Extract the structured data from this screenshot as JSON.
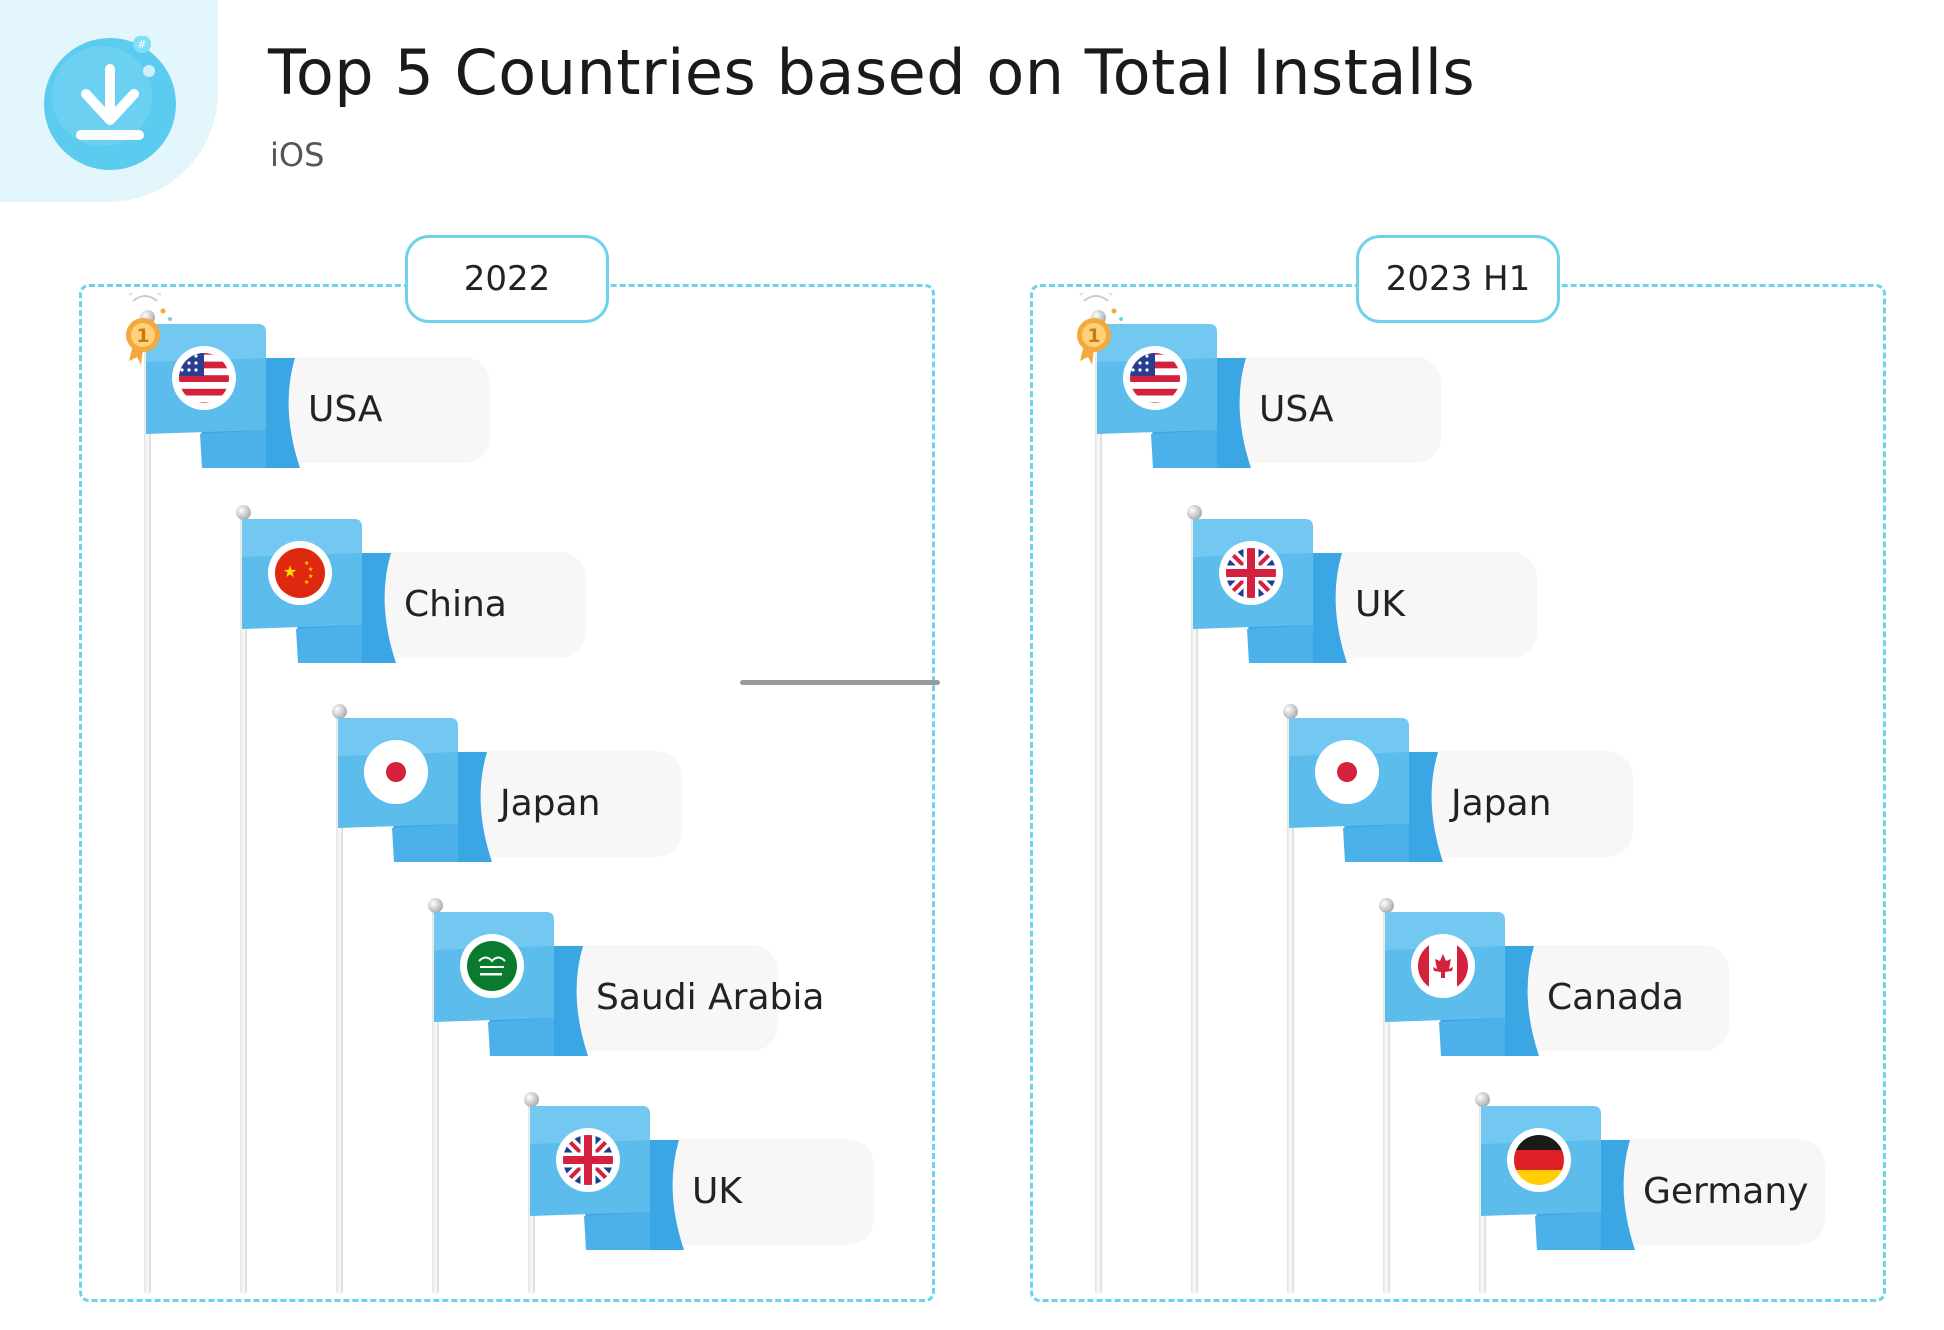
{
  "header": {
    "title": "Top 5 Countries based on Total Installs",
    "platform": "iOS",
    "icon": "download-icon"
  },
  "colors": {
    "accent": "#6fd2ea",
    "flag_blue": "#5cbcec",
    "flag_dark": "#3aa6e4",
    "medal": "#f3a93b"
  },
  "panels": [
    {
      "year": "2022",
      "countries": [
        {
          "rank": 1,
          "name": "USA",
          "flag": "usa-flag-icon"
        },
        {
          "rank": 2,
          "name": "China",
          "flag": "china-flag-icon"
        },
        {
          "rank": 3,
          "name": "Japan",
          "flag": "japan-flag-icon"
        },
        {
          "rank": 4,
          "name": "Saudi Arabia",
          "flag": "saudi-arabia-flag-icon"
        },
        {
          "rank": 5,
          "name": "UK",
          "flag": "uk-flag-icon"
        }
      ]
    },
    {
      "year": "2023 H1",
      "countries": [
        {
          "rank": 1,
          "name": "USA",
          "flag": "usa-flag-icon"
        },
        {
          "rank": 2,
          "name": "UK",
          "flag": "uk-flag-icon"
        },
        {
          "rank": 3,
          "name": "Japan",
          "flag": "japan-flag-icon"
        },
        {
          "rank": 4,
          "name": "Canada",
          "flag": "canada-flag-icon"
        },
        {
          "rank": 5,
          "name": "Germany",
          "flag": "germany-flag-icon"
        }
      ]
    }
  ]
}
